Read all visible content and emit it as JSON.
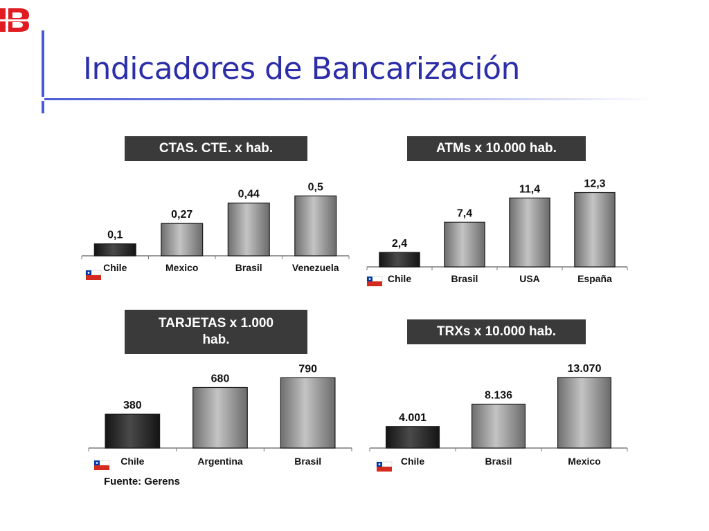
{
  "slide": {
    "title": "Indicadores de Bancarización",
    "source": "Fuente: Gerens",
    "page_number": "",
    "accent_color": "#2b2ea8"
  },
  "logo": {
    "icon": "ib-logo-icon",
    "color": "#e01b22"
  },
  "chart_data": [
    {
      "type": "bar",
      "title": "CTAS. CTE. x hab.",
      "categories": [
        "Chile",
        "Mexico",
        "Brasil",
        "Venezuela"
      ],
      "values": [
        0.1,
        0.27,
        0.44,
        0.5
      ],
      "labels": [
        "0,1",
        "0,27",
        "0,44",
        "0,5"
      ],
      "ylim": [
        0,
        0.6
      ],
      "highlight": "Chile",
      "flag_icon": "chile-flag-icon"
    },
    {
      "type": "bar",
      "title": "ATMs x 10.000 hab.",
      "categories": [
        "Chile",
        "Brasil",
        "USA",
        "España"
      ],
      "values": [
        2.4,
        7.4,
        11.4,
        12.3
      ],
      "labels": [
        "2,4",
        "7,4",
        "11,4",
        "12,3"
      ],
      "ylim": [
        0,
        13.5
      ],
      "highlight": "Chile",
      "flag_icon": "chile-flag-icon"
    },
    {
      "type": "bar",
      "title": "TARJETAS x 1.000\nhab.",
      "categories": [
        "Chile",
        "Argentina",
        "Brasil"
      ],
      "values": [
        380,
        680,
        790
      ],
      "labels": [
        "380",
        "680",
        "790"
      ],
      "ylim": [
        0,
        870
      ],
      "highlight": "Chile",
      "flag_icon": "chile-flag-icon"
    },
    {
      "type": "bar",
      "title": "TRXs x 10.000 hab.",
      "categories": [
        "Chile",
        "Brasil",
        "Mexico"
      ],
      "values": [
        4001,
        8136,
        13070
      ],
      "labels": [
        "4.001",
        "8.136",
        "13.070"
      ],
      "ylim": [
        0,
        13070
      ],
      "highlight": "Chile",
      "flag_icon": "chile-flag-icon"
    }
  ]
}
